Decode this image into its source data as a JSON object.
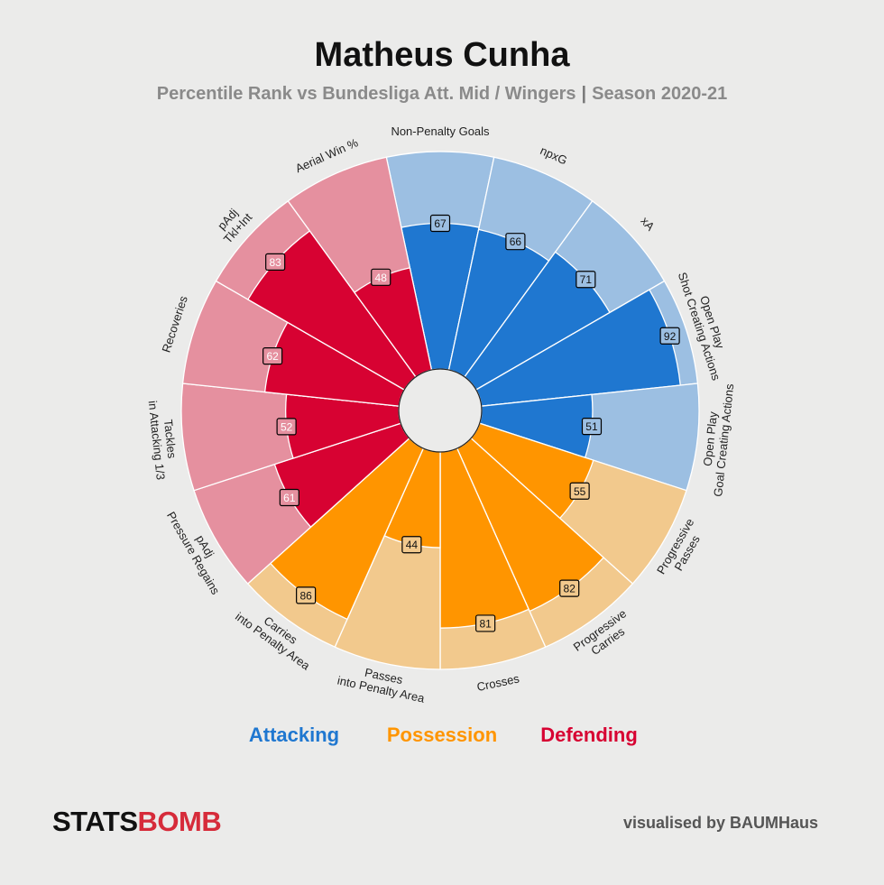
{
  "title": "Matheus Cunha",
  "subtitle": {
    "left": "Percentile Rank vs Bundesliga Att. Mid / Wingers",
    "separator": "|",
    "right": "Season 2020-21"
  },
  "colors": {
    "attacking": "#1f77d0",
    "attacking_light": "#9cbfe2",
    "possession": "#ff9500",
    "possession_light": "#f2c98d",
    "defending": "#d70232",
    "defending_light": "#e5909f"
  },
  "legend": {
    "attacking": "Attacking",
    "possession": "Possession",
    "defending": "Defending"
  },
  "footer": {
    "logo_stats": "STATS",
    "logo_bomb": "BOMB",
    "credit": "visualised by BAUMHaus"
  },
  "chart_data": {
    "type": "radar-pizza",
    "value_range": [
      0,
      100
    ],
    "metrics": [
      {
        "label": [
          "Non-Penalty Goals"
        ],
        "value": 67,
        "group": "attacking"
      },
      {
        "label": [
          "npxG"
        ],
        "value": 66,
        "group": "attacking"
      },
      {
        "label": [
          "xA"
        ],
        "value": 71,
        "group": "attacking"
      },
      {
        "label": [
          "Open Play",
          "Shot Creating Actions"
        ],
        "value": 92,
        "group": "attacking"
      },
      {
        "label": [
          "Open Play",
          "Goal Creating Actions"
        ],
        "value": 51,
        "group": "attacking"
      },
      {
        "label": [
          "Progressive",
          "Passes"
        ],
        "value": 55,
        "group": "possession"
      },
      {
        "label": [
          "Progressive",
          "Carries"
        ],
        "value": 82,
        "group": "possession"
      },
      {
        "label": [
          "Crosses"
        ],
        "value": 81,
        "group": "possession"
      },
      {
        "label": [
          "Passes",
          "into Penalty Area"
        ],
        "value": 44,
        "group": "possession"
      },
      {
        "label": [
          "Carries",
          "into Penalty Area"
        ],
        "value": 86,
        "group": "possession"
      },
      {
        "label": [
          "pAdj",
          "Pressure Regains"
        ],
        "value": 61,
        "group": "defending"
      },
      {
        "label": [
          "Tackles",
          "in Attacking 1/3"
        ],
        "value": 52,
        "group": "defending"
      },
      {
        "label": [
          "Recoveries"
        ],
        "value": 62,
        "group": "defending"
      },
      {
        "label": [
          "pAdj",
          "Tkl+Int"
        ],
        "value": 83,
        "group": "defending"
      },
      {
        "label": [
          "Aerial Win %"
        ],
        "value": 48,
        "group": "defending"
      }
    ]
  }
}
